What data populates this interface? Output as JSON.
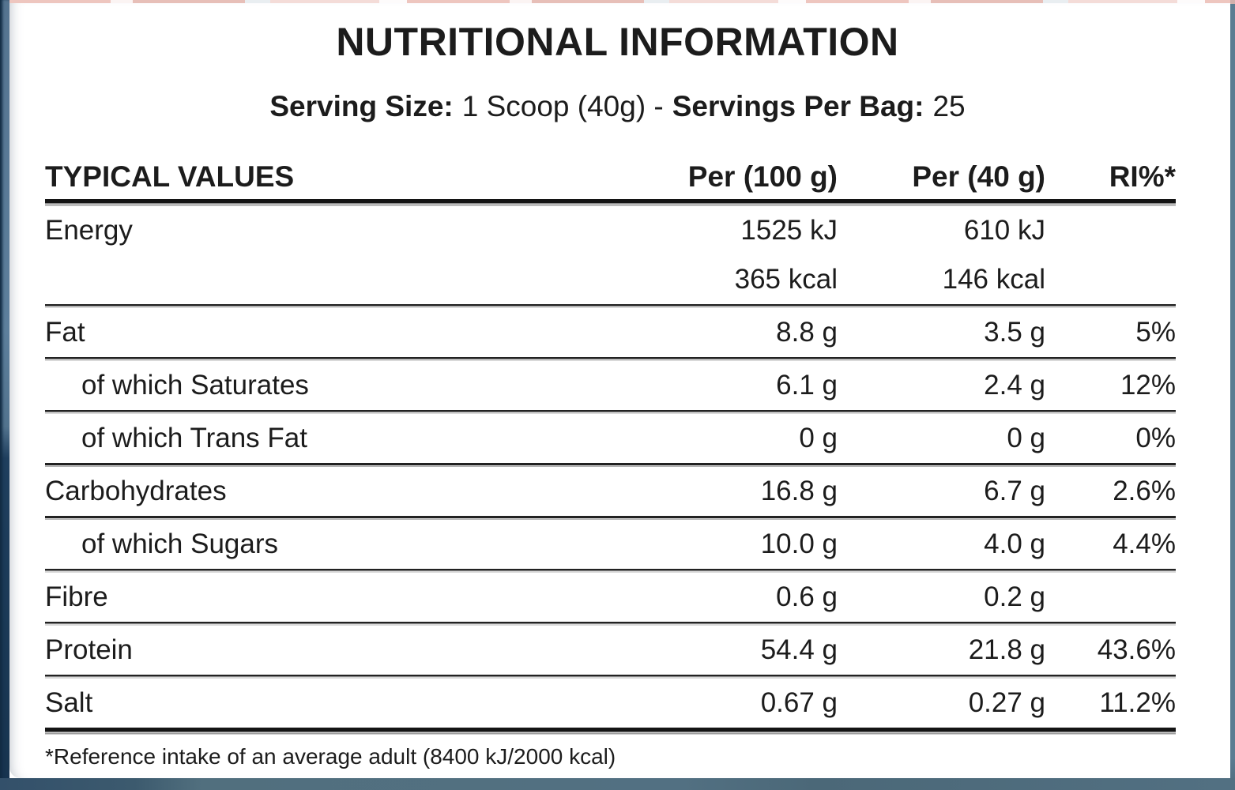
{
  "title": "NUTRITIONAL INFORMATION",
  "serving": {
    "size_label": "Serving Size:",
    "size_value": "1 Scoop (40g) -",
    "bag_label": "Servings Per Bag:",
    "bag_value": "25"
  },
  "table": {
    "headers": [
      "TYPICAL VALUES",
      "Per (100 g)",
      "Per (40 g)",
      "RI%*"
    ],
    "rows": [
      {
        "name": "Energy",
        "per100": "1525 kJ",
        "per40": "610 kJ",
        "ri": "",
        "indent": false,
        "sep": "none"
      },
      {
        "name": "",
        "per100": "365 kcal",
        "per40": "146 kcal",
        "ri": "",
        "indent": false,
        "sep": "thin"
      },
      {
        "name": "Fat",
        "per100": "8.8 g",
        "per40": "3.5 g",
        "ri": "5%",
        "indent": false,
        "sep": "thin"
      },
      {
        "name": "of which Saturates",
        "per100": "6.1 g",
        "per40": "2.4 g",
        "ri": "12%",
        "indent": true,
        "sep": "thin"
      },
      {
        "name": "of which Trans Fat",
        "per100": "0 g",
        "per40": "0 g",
        "ri": "0%",
        "indent": true,
        "sep": "thin"
      },
      {
        "name": "Carbohydrates",
        "per100": "16.8 g",
        "per40": "6.7 g",
        "ri": "2.6%",
        "indent": false,
        "sep": "thin"
      },
      {
        "name": "of which Sugars",
        "per100": "10.0 g",
        "per40": "4.0 g",
        "ri": "4.4%",
        "indent": true,
        "sep": "thin"
      },
      {
        "name": "Fibre",
        "per100": "0.6 g",
        "per40": "0.2 g",
        "ri": "",
        "indent": false,
        "sep": "thin"
      },
      {
        "name": "Protein",
        "per100": "54.4 g",
        "per40": "21.8 g",
        "ri": "43.6%",
        "indent": false,
        "sep": "thin"
      },
      {
        "name": "Salt",
        "per100": "0.67 g",
        "per40": "0.27 g",
        "ri": "11.2%",
        "indent": false,
        "sep": "thick"
      }
    ],
    "footnote": "*Reference intake of an average adult (8400 kJ/2000 kcal)"
  },
  "colors": {
    "text": "#1c1c1c",
    "panel_background": "#ffffff",
    "left_edge_navy": "#17344f",
    "left_edge_highlight": "#5d7f9c",
    "bottom_strip_slate": "#516f7e",
    "right_strip_slate": "#5b7c92",
    "top_strip_salmon": "#eec6bf"
  }
}
